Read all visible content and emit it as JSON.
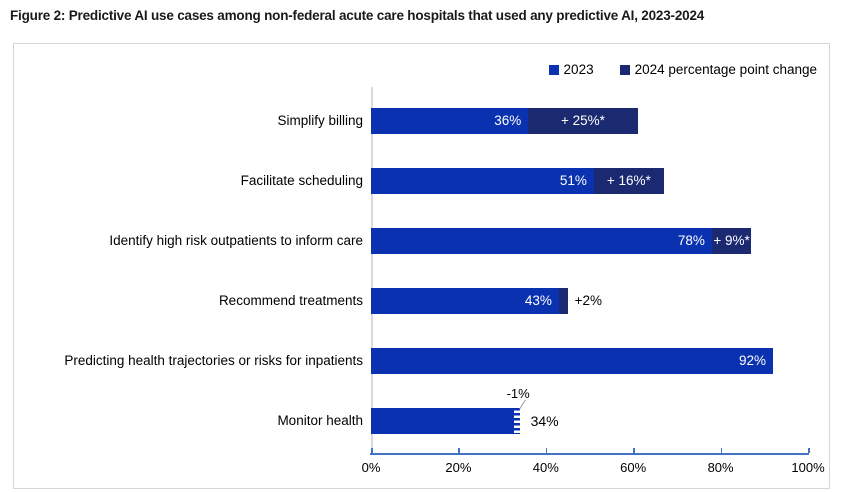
{
  "figure": {
    "title": "Figure 2: Predictive AI use cases among non-federal acute care hospitals that used any predictive AI, 2023-2024"
  },
  "legend": [
    {
      "label": "2023",
      "color": "#0a31b0"
    },
    {
      "label": "2024 percentage point change",
      "color": "#1b2a70"
    }
  ],
  "chart_data": {
    "type": "bar",
    "orientation": "horizontal",
    "title": "Figure 2: Predictive AI use cases among non-federal acute care hospitals that used any predictive AI, 2023-2024",
    "xlim": [
      0,
      100
    ],
    "x_tick_labels": [
      "0%",
      "20%",
      "40%",
      "60%",
      "80%",
      "100%"
    ],
    "grid": false,
    "legend_position": "top-right",
    "categories": [
      "Simplify billing",
      "Facilitate scheduling",
      "Identify high risk outpatients to inform care",
      "Recommend treatments",
      "Predicting health trajectories or risks for inpatients",
      "Monitor health"
    ],
    "series": [
      {
        "name": "2023",
        "values": [
          36,
          51,
          78,
          43,
          92,
          34
        ]
      },
      {
        "name": "2024 percentage point change",
        "values": [
          25,
          16,
          9,
          2,
          0,
          -1
        ]
      }
    ],
    "rows": [
      {
        "label": "Simplify billing",
        "value": 36,
        "value_label": "36%",
        "change": 25,
        "change_label": "+ 25%*",
        "change_style": "inside"
      },
      {
        "label": "Facilitate scheduling",
        "value": 51,
        "value_label": "51%",
        "change": 16,
        "change_label": "+ 16%*",
        "change_style": "inside"
      },
      {
        "label": "Identify high risk outpatients to inform care",
        "value": 78,
        "value_label": "78%",
        "change": 9,
        "change_label": "+ 9%*",
        "change_style": "inside"
      },
      {
        "label": "Recommend treatments",
        "value": 43,
        "value_label": "43%",
        "change": 2,
        "change_label": "+2%",
        "change_style": "outside"
      },
      {
        "label": "Predicting health trajectories or risks for inpatients",
        "value": 92,
        "value_label": "92%",
        "change": 0,
        "change_label": "",
        "change_style": "none"
      },
      {
        "label": "Monitor health",
        "value": 34,
        "value_label": "34%",
        "change": -1,
        "change_label": "-1%",
        "change_style": "callout"
      }
    ],
    "colors": {
      "bar_2023": "#0a31b0",
      "change_positive": "#1b2a70",
      "axis_line": "#4472c4",
      "baseline": "#d9d9d9"
    }
  }
}
